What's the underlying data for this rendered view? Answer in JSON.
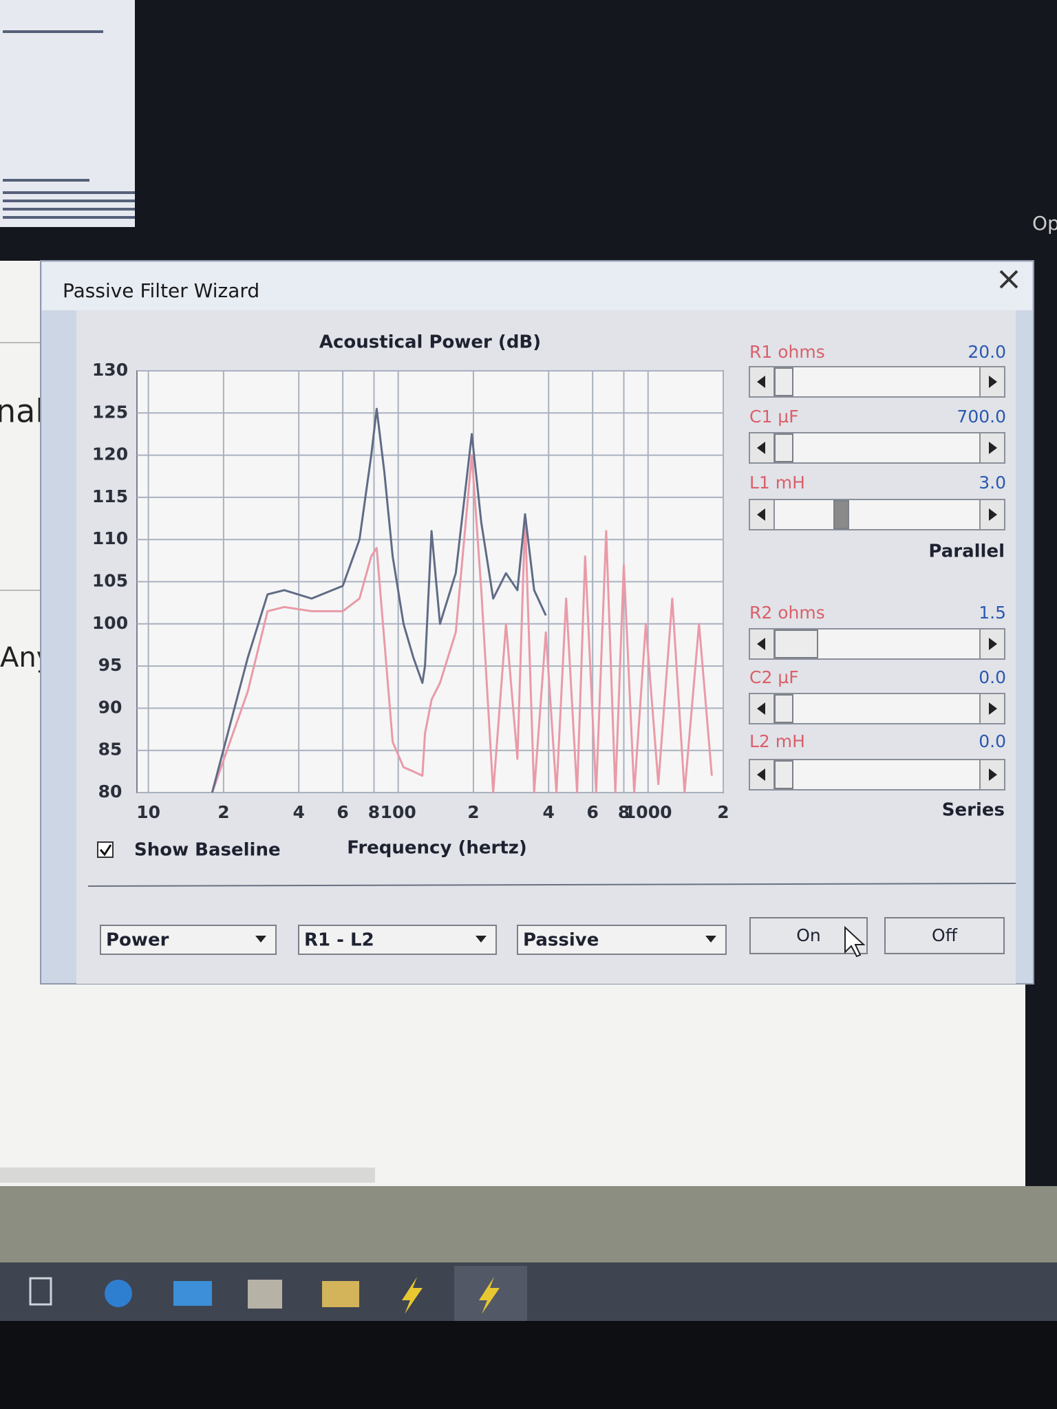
{
  "background_text": [
    "nal",
    "Any",
    "Op"
  ],
  "window": {
    "title": "Passive Filter Wizard"
  },
  "chart_data": {
    "type": "line",
    "title": "Acoustical Power (dB)",
    "xlabel": "Frequency (hertz)",
    "xscale": "log",
    "x": [
      18,
      25,
      30,
      35,
      45,
      60,
      70,
      78,
      82,
      88,
      95,
      105,
      115,
      125,
      128,
      136,
      147,
      170,
      197,
      215,
      240,
      270,
      300,
      322,
      350,
      390,
      430,
      470,
      520,
      560,
      620,
      680,
      740,
      800,
      880,
      980,
      1100,
      1250,
      1400,
      1600,
      1800
    ],
    "series": [
      {
        "color": "#5f6b86",
        "values": [
          80,
          96,
          103.5,
          104,
          103,
          104.5,
          110,
          120,
          125.5,
          118,
          108,
          100,
          96,
          93,
          95,
          111,
          100,
          106,
          122.5,
          112,
          103,
          106,
          104,
          113,
          104,
          101,
          null,
          null,
          null,
          null,
          null,
          null,
          null,
          null,
          null,
          null,
          null,
          null,
          null,
          null,
          null
        ]
      },
      {
        "color": "#e99aa8",
        "values": [
          80,
          92,
          101.5,
          102,
          101.5,
          101.5,
          103,
          108,
          109,
          98,
          86,
          83,
          82.5,
          82,
          87,
          91,
          93,
          99,
          120,
          104,
          80,
          100,
          84,
          112.5,
          80,
          99,
          80,
          103,
          80,
          108,
          80,
          111,
          80,
          107,
          80,
          100,
          81,
          103,
          80,
          100,
          82
        ]
      }
    ],
    "xlim": [
      9,
      2000
    ],
    "xticks": [
      10,
      {
        "value": 20,
        "label": "2"
      },
      {
        "value": 40,
        "label": "4"
      },
      {
        "value": 60,
        "label": "6"
      },
      {
        "value": 80,
        "label": "8"
      },
      100,
      {
        "value": 200,
        "label": "2"
      },
      {
        "value": 400,
        "label": "4"
      },
      {
        "value": 600,
        "label": "6"
      },
      {
        "value": 800,
        "label": "8"
      },
      1000,
      {
        "value": 2000,
        "label": "2"
      }
    ],
    "ylim": [
      80,
      130
    ],
    "yticks": [
      80,
      85,
      90,
      95,
      100,
      105,
      110,
      115,
      120,
      125,
      130
    ],
    "grid": true
  },
  "show_baseline": {
    "label": "Show Baseline",
    "checked": true
  },
  "controls": {
    "parallel": {
      "label": "Parallel",
      "sliders": [
        {
          "label": "R1 ohms",
          "value": "20.0"
        },
        {
          "label": "C1 µF",
          "value": "700.0"
        },
        {
          "label": "L1 mH",
          "value": "3.0"
        }
      ]
    },
    "series": {
      "label": "Series",
      "sliders": [
        {
          "label": "R2 ohms",
          "value": "1.5"
        },
        {
          "label": "C2 µF",
          "value": "0.0"
        },
        {
          "label": "L2 mH",
          "value": "0.0"
        }
      ]
    }
  },
  "dropdowns": [
    "Power",
    "R1 - L2",
    "Passive"
  ],
  "buttons": [
    "On",
    "Off"
  ]
}
